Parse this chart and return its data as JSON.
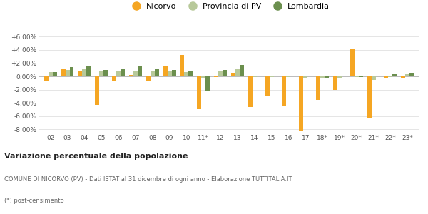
{
  "categories": [
    "02",
    "03",
    "04",
    "05",
    "06",
    "07",
    "08",
    "09",
    "10",
    "11*",
    "12",
    "13",
    "14",
    "15",
    "16",
    "17",
    "18*",
    "19*",
    "20*",
    "21*",
    "22*",
    "23*"
  ],
  "nicorvo": [
    -0.8,
    1.1,
    0.8,
    -4.3,
    -0.7,
    0.2,
    -0.8,
    1.6,
    3.2,
    -5.0,
    -0.1,
    0.5,
    -4.6,
    -2.9,
    -4.5,
    -8.2,
    -3.5,
    -2.0,
    4.1,
    -6.3,
    -0.3,
    -0.2
  ],
  "provincia": [
    0.6,
    1.0,
    1.1,
    0.9,
    0.9,
    0.8,
    0.8,
    0.8,
    0.6,
    -0.2,
    0.8,
    1.1,
    -0.1,
    -0.1,
    -0.1,
    -0.2,
    -0.3,
    -0.2,
    -0.1,
    -0.5,
    -0.1,
    0.3
  ],
  "lombardia": [
    0.7,
    1.4,
    1.5,
    1.0,
    1.1,
    1.5,
    1.1,
    1.0,
    0.8,
    -2.3,
    1.0,
    1.7,
    0.0,
    0.0,
    0.0,
    0.0,
    -0.3,
    0.0,
    -0.1,
    0.1,
    0.3,
    0.4
  ],
  "nicorvo_color": "#f5a623",
  "provincia_color": "#b8c99a",
  "lombardia_color": "#6b8f4e",
  "background_color": "#ffffff",
  "grid_color": "#e0e0e0",
  "ylim": [
    -8.5,
    7.0
  ],
  "yticks": [
    -8.0,
    -6.0,
    -4.0,
    -2.0,
    0.0,
    2.0,
    4.0,
    6.0
  ],
  "title_bold": "Variazione percentuale della popolazione",
  "subtitle1": "COMUNE DI NICORVO (PV) - Dati ISTAT al 31 dicembre di ogni anno - Elaborazione TUTTITALIA.IT",
  "subtitle2": "(*) post-censimento",
  "legend_labels": [
    "Nicorvo",
    "Provincia di PV",
    "Lombardia"
  ],
  "bar_width": 0.25
}
